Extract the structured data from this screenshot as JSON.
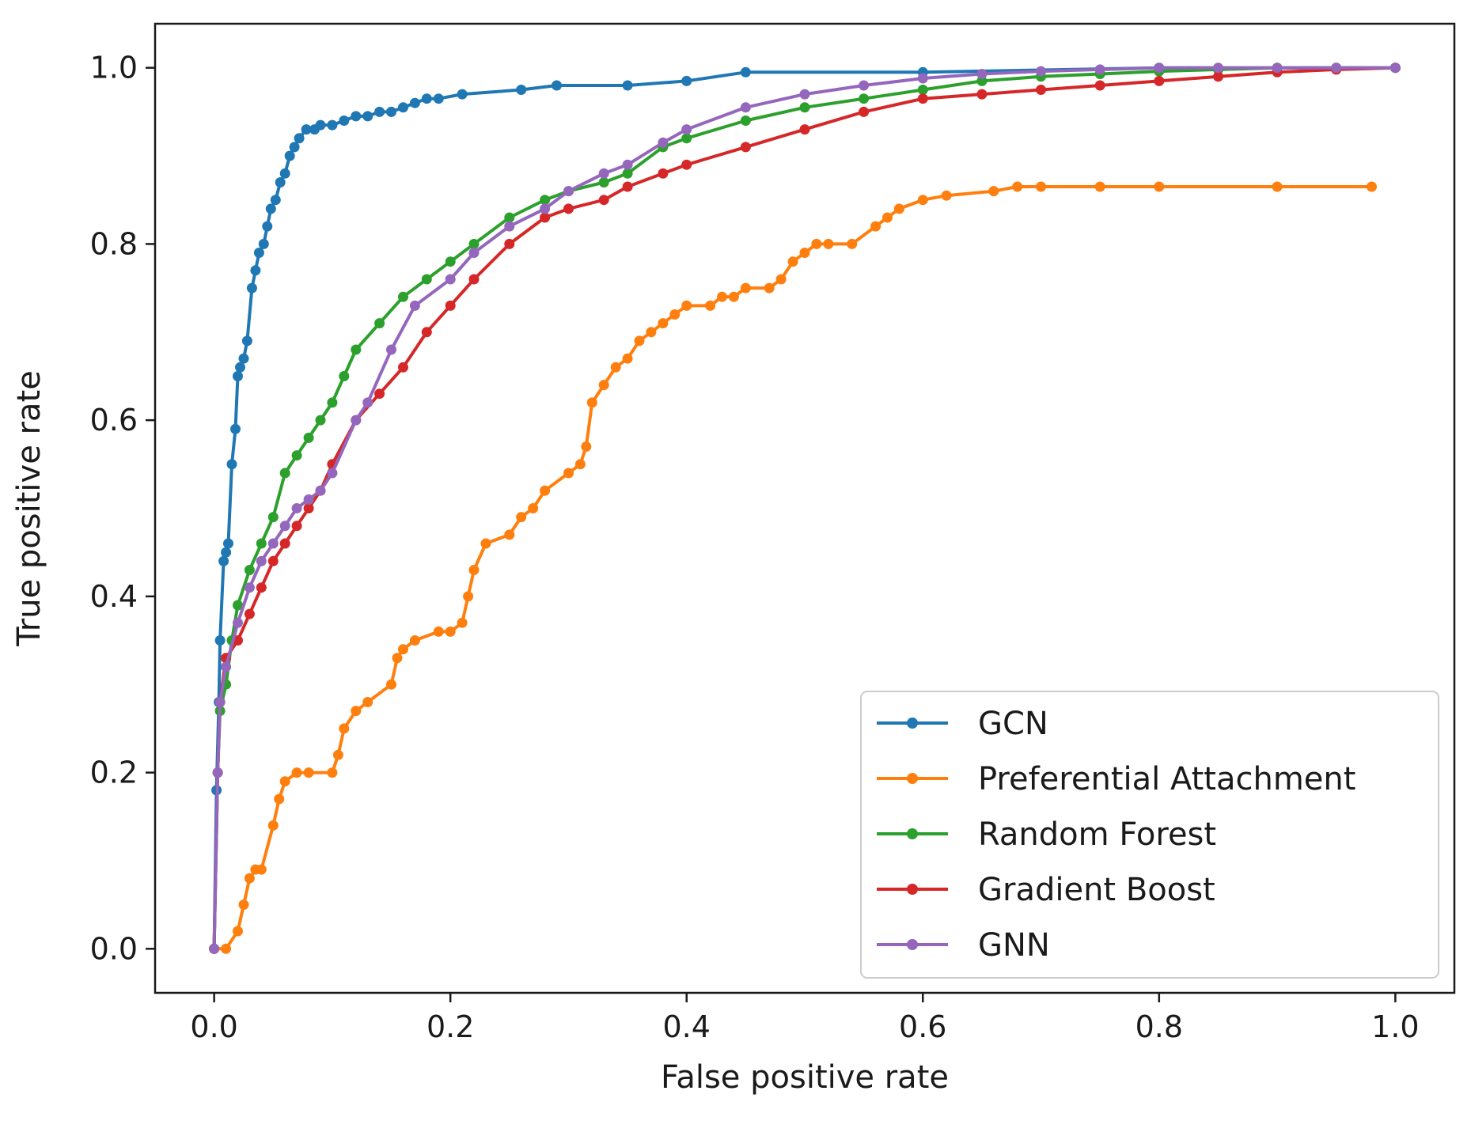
{
  "chart_data": {
    "type": "line",
    "title": "",
    "xlabel": "False positive rate",
    "ylabel": "True positive rate",
    "xlim": [
      -0.05,
      1.05
    ],
    "ylim": [
      -0.05,
      1.05
    ],
    "xticks": [
      0.0,
      0.2,
      0.4,
      0.6,
      0.8,
      1.0
    ],
    "xtick_labels": [
      "0.0",
      "0.2",
      "0.4",
      "0.6",
      "0.8",
      "1.0"
    ],
    "yticks": [
      0.0,
      0.2,
      0.4,
      0.6,
      0.8,
      1.0
    ],
    "ytick_labels": [
      "0.0",
      "0.2",
      "0.4",
      "0.6",
      "0.8",
      "1.0"
    ],
    "grid": false,
    "legend_position": "lower-right",
    "series": [
      {
        "name": "GCN",
        "color": "#1f77b4",
        "x": [
          0.0,
          0.002,
          0.004,
          0.005,
          0.008,
          0.01,
          0.012,
          0.015,
          0.018,
          0.02,
          0.022,
          0.025,
          0.028,
          0.032,
          0.035,
          0.038,
          0.042,
          0.045,
          0.048,
          0.052,
          0.056,
          0.06,
          0.064,
          0.068,
          0.072,
          0.078,
          0.085,
          0.09,
          0.1,
          0.11,
          0.12,
          0.13,
          0.14,
          0.15,
          0.16,
          0.17,
          0.18,
          0.19,
          0.21,
          0.26,
          0.29,
          0.35,
          0.4,
          0.45,
          0.6,
          0.8,
          1.0
        ],
        "y": [
          0.0,
          0.18,
          0.28,
          0.35,
          0.44,
          0.45,
          0.46,
          0.55,
          0.59,
          0.65,
          0.66,
          0.67,
          0.69,
          0.75,
          0.77,
          0.79,
          0.8,
          0.82,
          0.84,
          0.85,
          0.87,
          0.88,
          0.9,
          0.91,
          0.92,
          0.93,
          0.93,
          0.935,
          0.935,
          0.94,
          0.945,
          0.945,
          0.95,
          0.95,
          0.955,
          0.96,
          0.965,
          0.965,
          0.97,
          0.975,
          0.98,
          0.98,
          0.985,
          0.995,
          0.995,
          1.0,
          1.0
        ]
      },
      {
        "name": "Preferential Attachment",
        "color": "#ff7f0e",
        "x": [
          0.0,
          0.01,
          0.02,
          0.025,
          0.03,
          0.035,
          0.04,
          0.05,
          0.055,
          0.06,
          0.07,
          0.08,
          0.1,
          0.105,
          0.11,
          0.12,
          0.13,
          0.15,
          0.155,
          0.16,
          0.17,
          0.19,
          0.2,
          0.21,
          0.215,
          0.22,
          0.23,
          0.25,
          0.26,
          0.27,
          0.28,
          0.3,
          0.31,
          0.315,
          0.32,
          0.33,
          0.34,
          0.35,
          0.36,
          0.37,
          0.38,
          0.39,
          0.4,
          0.42,
          0.43,
          0.44,
          0.45,
          0.47,
          0.48,
          0.49,
          0.5,
          0.51,
          0.52,
          0.54,
          0.56,
          0.57,
          0.58,
          0.6,
          0.62,
          0.66,
          0.68,
          0.7,
          0.75,
          0.8,
          0.9,
          0.98
        ],
        "y": [
          0.0,
          0.0,
          0.02,
          0.05,
          0.08,
          0.09,
          0.09,
          0.14,
          0.17,
          0.19,
          0.2,
          0.2,
          0.2,
          0.22,
          0.25,
          0.27,
          0.28,
          0.3,
          0.33,
          0.34,
          0.35,
          0.36,
          0.36,
          0.37,
          0.4,
          0.43,
          0.46,
          0.47,
          0.49,
          0.5,
          0.52,
          0.54,
          0.55,
          0.57,
          0.62,
          0.64,
          0.66,
          0.67,
          0.69,
          0.7,
          0.71,
          0.72,
          0.73,
          0.73,
          0.74,
          0.74,
          0.75,
          0.75,
          0.76,
          0.78,
          0.79,
          0.8,
          0.8,
          0.8,
          0.82,
          0.83,
          0.84,
          0.85,
          0.855,
          0.86,
          0.865,
          0.865,
          0.865,
          0.865,
          0.865,
          0.865
        ]
      },
      {
        "name": "Random Forest",
        "color": "#2ca02c",
        "x": [
          0.0,
          0.003,
          0.005,
          0.01,
          0.015,
          0.02,
          0.03,
          0.04,
          0.05,
          0.06,
          0.07,
          0.08,
          0.09,
          0.1,
          0.11,
          0.12,
          0.14,
          0.16,
          0.18,
          0.2,
          0.22,
          0.25,
          0.28,
          0.3,
          0.33,
          0.35,
          0.38,
          0.4,
          0.45,
          0.5,
          0.55,
          0.6,
          0.65,
          0.7,
          0.75,
          0.8,
          0.85,
          0.9,
          0.95,
          1.0
        ],
        "y": [
          0.0,
          0.2,
          0.27,
          0.3,
          0.35,
          0.39,
          0.43,
          0.46,
          0.49,
          0.54,
          0.56,
          0.58,
          0.6,
          0.62,
          0.65,
          0.68,
          0.71,
          0.74,
          0.76,
          0.78,
          0.8,
          0.83,
          0.85,
          0.86,
          0.87,
          0.88,
          0.91,
          0.92,
          0.94,
          0.955,
          0.965,
          0.975,
          0.985,
          0.99,
          0.993,
          0.996,
          0.998,
          1.0,
          1.0,
          1.0
        ]
      },
      {
        "name": "Gradient Boost",
        "color": "#d62728",
        "x": [
          0.0,
          0.003,
          0.005,
          0.01,
          0.02,
          0.03,
          0.04,
          0.05,
          0.06,
          0.07,
          0.08,
          0.09,
          0.1,
          0.12,
          0.14,
          0.16,
          0.18,
          0.2,
          0.22,
          0.25,
          0.28,
          0.3,
          0.33,
          0.35,
          0.38,
          0.4,
          0.45,
          0.5,
          0.55,
          0.6,
          0.65,
          0.7,
          0.75,
          0.8,
          0.85,
          0.9,
          0.95,
          1.0
        ],
        "y": [
          0.0,
          0.2,
          0.28,
          0.33,
          0.35,
          0.38,
          0.41,
          0.44,
          0.46,
          0.48,
          0.5,
          0.52,
          0.55,
          0.6,
          0.63,
          0.66,
          0.7,
          0.73,
          0.76,
          0.8,
          0.83,
          0.84,
          0.85,
          0.865,
          0.88,
          0.89,
          0.91,
          0.93,
          0.95,
          0.965,
          0.97,
          0.975,
          0.98,
          0.985,
          0.99,
          0.995,
          0.998,
          1.0
        ]
      },
      {
        "name": "GNN",
        "color": "#9467bd",
        "x": [
          0.0,
          0.003,
          0.005,
          0.01,
          0.02,
          0.03,
          0.04,
          0.05,
          0.06,
          0.07,
          0.08,
          0.09,
          0.1,
          0.12,
          0.13,
          0.15,
          0.17,
          0.2,
          0.22,
          0.25,
          0.28,
          0.3,
          0.33,
          0.35,
          0.38,
          0.4,
          0.45,
          0.5,
          0.55,
          0.6,
          0.65,
          0.7,
          0.75,
          0.8,
          0.85,
          0.9,
          0.95,
          1.0
        ],
        "y": [
          0.0,
          0.2,
          0.28,
          0.32,
          0.37,
          0.41,
          0.44,
          0.46,
          0.48,
          0.5,
          0.51,
          0.52,
          0.54,
          0.6,
          0.62,
          0.68,
          0.73,
          0.76,
          0.79,
          0.82,
          0.84,
          0.86,
          0.88,
          0.89,
          0.915,
          0.93,
          0.955,
          0.97,
          0.98,
          0.988,
          0.993,
          0.996,
          0.998,
          1.0,
          1.0,
          1.0,
          1.0,
          1.0
        ]
      }
    ]
  }
}
